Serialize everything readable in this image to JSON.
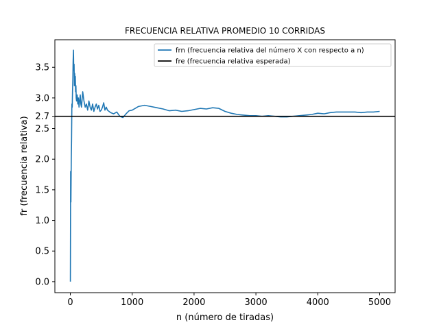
{
  "chart_data": {
    "type": "line",
    "title": "FRECUENCIA RELATIVA PROMEDIO 10 CORRIDAS",
    "xlabel": "n (número de tiradas)",
    "ylabel": "fr (frecuencia relativa)",
    "xlim": [
      -250,
      5250
    ],
    "ylim": [
      -0.18,
      3.95
    ],
    "xticks": [
      0,
      1000,
      2000,
      3000,
      4000,
      5000
    ],
    "xtick_labels": [
      "0",
      "1000",
      "2000",
      "3000",
      "4000",
      "5000"
    ],
    "yticks": [
      0.0,
      0.5,
      1.0,
      1.5,
      2.0,
      2.5,
      2.7,
      3.0,
      3.5
    ],
    "ytick_labels": [
      "0.0",
      "0.5",
      "1.0",
      "1.5",
      "2.0",
      "2.5",
      "2.7",
      "3.0",
      "3.5"
    ],
    "grid": false,
    "legend_position": "top-right",
    "series": [
      {
        "name": "frn (frecuencia relativa del número X con respecto a n)",
        "color": "#1f77b4",
        "kind": "line",
        "x": [
          1,
          5,
          10,
          15,
          20,
          25,
          30,
          35,
          40,
          45,
          50,
          55,
          60,
          65,
          70,
          75,
          80,
          85,
          90,
          95,
          100,
          110,
          120,
          130,
          140,
          150,
          160,
          170,
          180,
          200,
          220,
          240,
          260,
          280,
          300,
          320,
          340,
          360,
          380,
          400,
          420,
          440,
          460,
          480,
          500,
          520,
          540,
          560,
          580,
          600,
          650,
          700,
          750,
          800,
          850,
          900,
          950,
          1000,
          1100,
          1200,
          1300,
          1400,
          1500,
          1600,
          1700,
          1800,
          1900,
          2000,
          2100,
          2200,
          2300,
          2400,
          2500,
          2600,
          2700,
          2800,
          2900,
          3000,
          3100,
          3200,
          3300,
          3400,
          3500,
          3600,
          3700,
          3800,
          3900,
          4000,
          4100,
          4200,
          4300,
          4400,
          4500,
          4600,
          4700,
          4800,
          4900,
          5000
        ],
        "y": [
          0.0,
          1.8,
          1.3,
          2.0,
          2.3,
          2.9,
          2.85,
          3.1,
          3.3,
          3.6,
          3.78,
          3.45,
          3.55,
          3.2,
          3.4,
          3.25,
          3.35,
          3.1,
          3.2,
          3.0,
          2.95,
          3.05,
          2.9,
          3.0,
          2.85,
          2.95,
          3.05,
          2.9,
          2.85,
          3.1,
          2.95,
          2.85,
          2.9,
          2.8,
          2.95,
          2.85,
          2.8,
          2.9,
          2.78,
          2.85,
          2.9,
          2.82,
          2.88,
          2.78,
          2.8,
          2.85,
          2.92,
          2.8,
          2.85,
          2.8,
          2.76,
          2.74,
          2.77,
          2.7,
          2.68,
          2.74,
          2.79,
          2.8,
          2.86,
          2.88,
          2.86,
          2.84,
          2.82,
          2.79,
          2.8,
          2.78,
          2.79,
          2.81,
          2.83,
          2.82,
          2.84,
          2.83,
          2.78,
          2.75,
          2.73,
          2.72,
          2.71,
          2.71,
          2.7,
          2.71,
          2.7,
          2.69,
          2.69,
          2.7,
          2.71,
          2.72,
          2.73,
          2.75,
          2.74,
          2.76,
          2.77,
          2.77,
          2.77,
          2.77,
          2.76,
          2.77,
          2.77,
          2.78
        ]
      },
      {
        "name": "fre (frecuencia relativa esperada)",
        "color": "#000000",
        "kind": "hline",
        "y": 2.7
      }
    ]
  }
}
